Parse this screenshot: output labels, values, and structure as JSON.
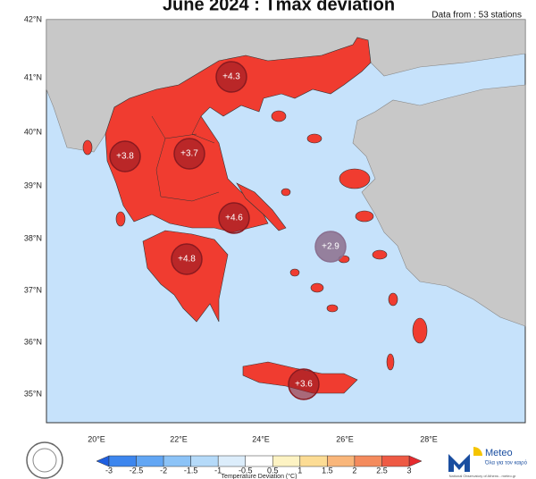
{
  "map": {
    "title": "June 2024 : Tmax deviation",
    "source": "Data from : 53 stations",
    "lat_labels": [
      "42°N",
      "41°N",
      "40°N",
      "39°N",
      "38°N",
      "37°N",
      "36°N",
      "35°N"
    ],
    "lon_labels": [
      "20°E",
      "22°E",
      "24°E",
      "26°E",
      "28°E"
    ],
    "regions": [
      {
        "label": "+4.3"
      },
      {
        "label": "+3.8"
      },
      {
        "label": "+3.7"
      },
      {
        "label": "+4.6"
      },
      {
        "label": "+4.8"
      },
      {
        "label": "+2.9"
      },
      {
        "label": "+3.6"
      }
    ],
    "colorbar": {
      "title": "Temperature Deviation (°C)",
      "ticks": [
        "-3",
        "-2.5",
        "-2",
        "-1.5",
        "-1",
        "-0.5",
        "0.5",
        "1",
        "1.5",
        "2",
        "2.5",
        "3"
      ],
      "colors": [
        "#1f5fe0",
        "#3d86ee",
        "#62a6f4",
        "#8cc3f7",
        "#b5daf9",
        "#dcedfb",
        "#ffffff",
        "#fdf3c3",
        "#fcdc94",
        "#f9b67a",
        "#f48b5d",
        "#ee5a44",
        "#e62a2e"
      ]
    },
    "logo": {
      "name": "Meteo",
      "tagline": "Όλα για τον καιρό",
      "credit": "National Observatory of Athens - meteo.gr"
    }
  }
}
